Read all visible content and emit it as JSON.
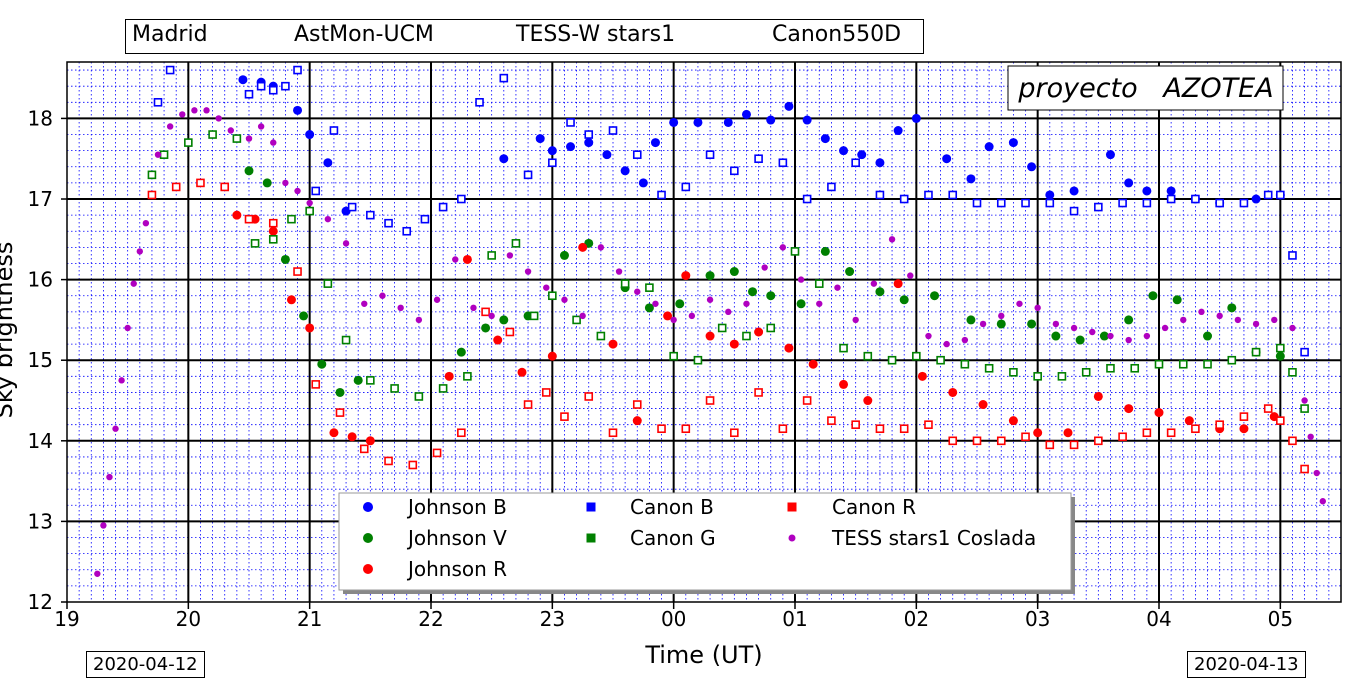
{
  "header": {
    "location": "Madrid",
    "observatory": "AstMon-UCM",
    "photometer": "TESS-W stars1",
    "camera": "Canon550D"
  },
  "project_label": "proyecto   AZOTEA",
  "date_start": "2020-04-12",
  "date_end": "2020-04-13",
  "chart_data": {
    "type": "scatter",
    "xlabel": "Time (UT)",
    "ylabel": "Sky brightness",
    "x_ticks": [
      "19",
      "20",
      "21",
      "22",
      "23",
      "00",
      "01",
      "02",
      "03",
      "04",
      "05"
    ],
    "y_ticks": [
      "12",
      "13",
      "14",
      "15",
      "16",
      "17",
      "18"
    ],
    "xlim": [
      19.0,
      29.5
    ],
    "ylim": [
      12,
      18.7
    ],
    "grid": true,
    "legend_position": "bottom-center",
    "series": [
      {
        "name": "Johnson B",
        "marker": "circle",
        "color": "#0000ff",
        "x": [
          20.45,
          20.6,
          20.7,
          20.9,
          21.0,
          21.15,
          21.3,
          22.9,
          22.6,
          23.0,
          23.15,
          23.3,
          23.45,
          23.6,
          23.75,
          23.85,
          24.0,
          24.2,
          24.45,
          24.6,
          24.8,
          24.95,
          25.1,
          25.25,
          25.4,
          25.55,
          25.7,
          25.85,
          26.0,
          26.25,
          26.45,
          26.6,
          26.8,
          26.95,
          27.1,
          27.3,
          27.6,
          27.75,
          27.9,
          28.1,
          28.3,
          28.5,
          28.8,
          29.0
        ],
        "y": [
          18.48,
          18.45,
          18.4,
          18.1,
          17.8,
          17.45,
          16.85,
          17.75,
          17.5,
          17.6,
          17.65,
          17.7,
          17.55,
          17.35,
          17.2,
          17.7,
          17.95,
          17.95,
          17.95,
          18.05,
          17.98,
          18.15,
          17.98,
          17.75,
          17.6,
          17.55,
          17.45,
          17.85,
          18.0,
          17.5,
          17.25,
          17.65,
          17.7,
          17.4,
          17.05,
          17.1,
          17.55,
          17.2,
          17.1,
          17.1,
          17.0,
          16.95,
          17.0,
          17.05
        ]
      },
      {
        "name": "Johnson V",
        "marker": "circle",
        "color": "#008000",
        "x": [
          20.5,
          20.65,
          20.8,
          20.95,
          21.1,
          21.25,
          21.4,
          22.25,
          22.45,
          22.6,
          22.8,
          23.1,
          23.3,
          23.6,
          23.8,
          24.05,
          24.3,
          24.5,
          24.65,
          24.8,
          25.05,
          25.25,
          25.45,
          25.7,
          25.9,
          26.15,
          26.45,
          26.7,
          26.95,
          27.15,
          27.35,
          27.55,
          27.75,
          27.95,
          28.15,
          28.4,
          28.6,
          28.8,
          29.0
        ],
        "y": [
          17.35,
          17.2,
          16.25,
          15.55,
          14.95,
          14.6,
          14.75,
          15.1,
          15.4,
          15.5,
          15.55,
          16.3,
          16.45,
          15.9,
          15.65,
          15.7,
          16.05,
          16.1,
          15.85,
          15.8,
          15.7,
          16.35,
          16.1,
          15.85,
          15.75,
          15.8,
          15.5,
          15.45,
          15.45,
          15.3,
          15.25,
          15.3,
          15.5,
          15.8,
          15.75,
          15.3,
          15.65,
          15.1,
          15.05
        ]
      },
      {
        "name": "Johnson R",
        "marker": "circle",
        "color": "#ff0000",
        "x": [
          20.4,
          20.55,
          20.7,
          20.85,
          21.0,
          21.2,
          21.35,
          21.5,
          22.15,
          22.3,
          22.55,
          22.75,
          23.0,
          23.25,
          23.5,
          23.7,
          23.95,
          24.1,
          24.3,
          24.5,
          24.7,
          24.95,
          25.15,
          25.4,
          25.6,
          25.85,
          26.05,
          26.3,
          26.55,
          26.8,
          27.0,
          27.25,
          27.5,
          27.75,
          28.0,
          28.25,
          28.5,
          28.7,
          28.95
        ],
        "y": [
          16.8,
          16.75,
          16.6,
          15.75,
          15.4,
          14.1,
          14.05,
          14.0,
          14.8,
          16.25,
          15.25,
          14.85,
          15.05,
          16.4,
          15.2,
          14.25,
          15.55,
          16.05,
          15.3,
          15.2,
          15.35,
          15.15,
          14.95,
          14.7,
          14.5,
          15.95,
          14.8,
          14.6,
          14.45,
          14.25,
          14.1,
          14.1,
          14.55,
          14.4,
          14.35,
          14.25,
          14.15,
          14.15,
          14.3
        ]
      },
      {
        "name": "Canon B",
        "marker": "square",
        "color": "#0000ff",
        "x": [
          19.75,
          19.85,
          20.5,
          20.6,
          20.7,
          20.8,
          20.9,
          21.05,
          21.2,
          21.35,
          21.5,
          21.65,
          21.8,
          21.95,
          22.1,
          22.25,
          22.4,
          22.6,
          22.8,
          23.0,
          23.15,
          23.3,
          23.5,
          23.7,
          23.9,
          24.1,
          24.3,
          24.5,
          24.7,
          24.9,
          25.1,
          25.3,
          25.5,
          25.7,
          25.9,
          26.1,
          26.3,
          26.5,
          26.7,
          26.9,
          27.1,
          27.3,
          27.5,
          27.7,
          27.9,
          28.1,
          28.3,
          28.5,
          28.7,
          28.9,
          29.0,
          29.1,
          29.2
        ],
        "y": [
          18.2,
          18.6,
          18.3,
          18.4,
          18.35,
          18.4,
          18.6,
          17.1,
          17.85,
          16.9,
          16.8,
          16.7,
          16.6,
          16.75,
          16.9,
          17.0,
          18.2,
          18.5,
          17.3,
          17.45,
          17.95,
          17.8,
          17.85,
          17.55,
          17.05,
          17.15,
          17.55,
          17.35,
          17.5,
          17.45,
          17.0,
          17.15,
          17.45,
          17.05,
          17.0,
          17.05,
          17.05,
          16.95,
          16.95,
          16.95,
          16.95,
          16.85,
          16.9,
          16.95,
          16.95,
          17.0,
          17.0,
          16.95,
          16.95,
          17.05,
          17.05,
          16.3,
          15.1
        ]
      },
      {
        "name": "Canon G",
        "marker": "square",
        "color": "#008000",
        "x": [
          19.7,
          19.8,
          20.0,
          20.2,
          20.4,
          20.55,
          20.7,
          20.85,
          21.0,
          21.15,
          21.3,
          21.5,
          21.7,
          21.9,
          22.1,
          22.3,
          22.5,
          22.7,
          22.85,
          23.0,
          23.2,
          23.4,
          23.6,
          23.8,
          24.0,
          24.2,
          24.4,
          24.6,
          24.8,
          25.0,
          25.2,
          25.4,
          25.6,
          25.8,
          26.0,
          26.2,
          26.4,
          26.6,
          26.8,
          27.0,
          27.2,
          27.4,
          27.6,
          27.8,
          28.0,
          28.2,
          28.4,
          28.6,
          28.8,
          29.0,
          29.1,
          29.2
        ],
        "y": [
          17.3,
          17.55,
          17.7,
          17.8,
          17.75,
          16.45,
          16.5,
          16.75,
          16.85,
          15.95,
          15.25,
          14.75,
          14.65,
          14.55,
          14.65,
          14.8,
          16.3,
          16.45,
          15.55,
          15.8,
          15.5,
          15.3,
          15.95,
          15.9,
          15.05,
          15.0,
          15.4,
          15.3,
          15.4,
          16.35,
          15.95,
          15.15,
          15.05,
          15.0,
          15.05,
          15.0,
          14.95,
          14.9,
          14.85,
          14.8,
          14.8,
          14.85,
          14.9,
          14.9,
          14.95,
          14.95,
          14.95,
          15.0,
          15.1,
          15.15,
          14.85,
          14.4
        ]
      },
      {
        "name": "Canon R",
        "marker": "square",
        "color": "#ff0000",
        "x": [
          19.7,
          19.9,
          20.1,
          20.3,
          20.5,
          20.7,
          20.9,
          21.05,
          21.25,
          21.45,
          21.65,
          21.85,
          22.05,
          22.25,
          22.45,
          22.65,
          22.8,
          22.95,
          23.1,
          23.3,
          23.5,
          23.7,
          23.9,
          24.1,
          24.3,
          24.5,
          24.7,
          24.9,
          25.1,
          25.3,
          25.5,
          25.7,
          25.9,
          26.1,
          26.3,
          26.5,
          26.7,
          26.9,
          27.1,
          27.3,
          27.5,
          27.7,
          27.9,
          28.1,
          28.3,
          28.5,
          28.7,
          28.9,
          29.0,
          29.1,
          29.2
        ],
        "y": [
          17.05,
          17.15,
          17.2,
          17.15,
          16.75,
          16.7,
          16.1,
          14.7,
          14.35,
          13.9,
          13.75,
          13.7,
          13.85,
          14.1,
          15.6,
          15.35,
          14.45,
          14.6,
          14.3,
          14.55,
          14.1,
          14.45,
          14.15,
          14.15,
          14.5,
          14.1,
          14.6,
          14.15,
          14.5,
          14.25,
          14.2,
          14.15,
          14.15,
          14.2,
          14.0,
          14.0,
          14.0,
          14.05,
          13.95,
          13.95,
          14.0,
          14.05,
          14.1,
          14.1,
          14.15,
          14.2,
          14.3,
          14.4,
          14.25,
          14.0,
          13.65
        ]
      },
      {
        "name": "TESS stars1 Coslada",
        "marker": "dot",
        "color": "#b000c0",
        "x": [
          19.25,
          19.3,
          19.35,
          19.4,
          19.45,
          19.5,
          19.55,
          19.6,
          19.65,
          19.75,
          19.85,
          19.95,
          20.05,
          20.15,
          20.25,
          20.35,
          20.5,
          20.6,
          20.7,
          20.8,
          20.9,
          21.0,
          21.15,
          21.3,
          21.45,
          21.6,
          21.75,
          21.9,
          22.05,
          22.2,
          22.35,
          22.5,
          22.65,
          22.8,
          22.95,
          23.1,
          23.25,
          23.4,
          23.55,
          23.7,
          23.85,
          24.0,
          24.15,
          24.3,
          24.45,
          24.6,
          24.75,
          24.9,
          25.05,
          25.2,
          25.35,
          25.5,
          25.65,
          25.8,
          25.95,
          26.1,
          26.25,
          26.4,
          26.55,
          26.7,
          26.85,
          27.0,
          27.15,
          27.3,
          27.45,
          27.6,
          27.75,
          27.9,
          28.05,
          28.2,
          28.35,
          28.5,
          28.65,
          28.8,
          28.95,
          29.1,
          29.2,
          29.25,
          29.3,
          29.35
        ],
        "y": [
          12.35,
          12.95,
          13.55,
          14.15,
          14.75,
          15.4,
          15.95,
          16.35,
          16.7,
          17.55,
          17.9,
          18.05,
          18.1,
          18.1,
          18.0,
          17.85,
          17.75,
          17.9,
          17.7,
          17.2,
          17.1,
          16.95,
          16.75,
          16.45,
          15.7,
          15.8,
          15.65,
          15.5,
          15.75,
          16.25,
          15.65,
          15.55,
          16.3,
          16.1,
          15.9,
          15.75,
          15.55,
          16.4,
          16.1,
          15.85,
          15.7,
          15.5,
          15.55,
          15.75,
          15.6,
          15.7,
          16.15,
          16.4,
          16.0,
          15.7,
          15.9,
          15.5,
          15.95,
          16.5,
          16.05,
          15.3,
          15.2,
          15.25,
          15.45,
          15.55,
          15.7,
          15.65,
          15.45,
          15.4,
          15.35,
          15.3,
          15.25,
          15.3,
          15.4,
          15.5,
          15.6,
          15.55,
          15.5,
          15.45,
          15.5,
          15.4,
          14.5,
          14.05,
          13.6,
          13.25
        ]
      }
    ]
  }
}
